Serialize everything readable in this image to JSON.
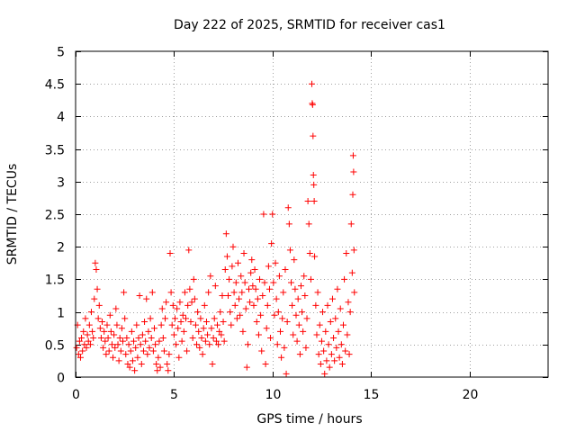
{
  "chart_data": {
    "type": "scatter",
    "title": "Day 222 of 2025, SRMTID for receiver cas1",
    "xlabel": "GPS time / hours",
    "ylabel": "SRMTID / TECUs",
    "xlim": [
      0,
      24
    ],
    "ylim": [
      0,
      5
    ],
    "x_ticks": [
      0,
      5,
      10,
      15,
      20
    ],
    "y_ticks": [
      0,
      0.5,
      1,
      1.5,
      2,
      2.5,
      3,
      3.5,
      4,
      4.5,
      5
    ],
    "x_tick_labels": [
      "0",
      "5",
      "10",
      "15",
      "20"
    ],
    "y_tick_labels": [
      "0",
      "0.5",
      "1",
      "1.5",
      "2",
      "2.5",
      "3",
      "3.5",
      "4",
      "4.5",
      "5"
    ],
    "grid": true,
    "marker": "+",
    "color": "#ff0000",
    "series": [
      {
        "name": "cas1",
        "points": [
          [
            0.05,
            0.45
          ],
          [
            0.1,
            0.8
          ],
          [
            0.15,
            0.35
          ],
          [
            0.2,
            0.55
          ],
          [
            0.25,
            0.3
          ],
          [
            0.3,
            0.6
          ],
          [
            0.35,
            0.4
          ],
          [
            0.4,
            0.7
          ],
          [
            0.45,
            0.5
          ],
          [
            0.5,
            0.9
          ],
          [
            0.55,
            0.45
          ],
          [
            0.6,
            0.65
          ],
          [
            0.65,
            0.55
          ],
          [
            0.7,
            0.8
          ],
          [
            0.75,
            0.5
          ],
          [
            0.8,
            1.0
          ],
          [
            0.85,
            0.7
          ],
          [
            0.9,
            0.6
          ],
          [
            0.95,
            1.2
          ],
          [
            1.0,
            1.75
          ],
          [
            1.05,
            1.65
          ],
          [
            1.1,
            1.35
          ],
          [
            1.15,
            0.9
          ],
          [
            1.2,
            1.1
          ],
          [
            1.25,
            0.75
          ],
          [
            1.3,
            0.6
          ],
          [
            1.35,
            0.85
          ],
          [
            1.4,
            0.45
          ],
          [
            1.45,
            0.7
          ],
          [
            1.5,
            0.55
          ],
          [
            1.55,
            0.35
          ],
          [
            1.6,
            0.8
          ],
          [
            1.65,
            0.6
          ],
          [
            1.7,
            0.4
          ],
          [
            1.75,
            0.95
          ],
          [
            1.8,
            0.7
          ],
          [
            1.85,
            0.5
          ],
          [
            1.9,
            0.3
          ],
          [
            1.95,
            0.65
          ],
          [
            2.0,
            0.45
          ],
          [
            2.05,
            1.05
          ],
          [
            2.1,
            0.8
          ],
          [
            2.15,
            0.5
          ],
          [
            2.2,
            0.25
          ],
          [
            2.25,
            0.6
          ],
          [
            2.3,
            0.4
          ],
          [
            2.35,
            0.75
          ],
          [
            2.4,
            0.55
          ],
          [
            2.45,
            1.3
          ],
          [
            2.5,
            0.9
          ],
          [
            2.55,
            0.35
          ],
          [
            2.6,
            0.6
          ],
          [
            2.65,
            0.2
          ],
          [
            2.7,
            0.5
          ],
          [
            2.75,
            0.15
          ],
          [
            2.8,
            0.4
          ],
          [
            2.85,
            0.7
          ],
          [
            2.9,
            0.25
          ],
          [
            2.95,
            0.55
          ],
          [
            3.0,
            0.1
          ],
          [
            3.05,
            0.45
          ],
          [
            3.1,
            0.8
          ],
          [
            3.15,
            0.3
          ],
          [
            3.2,
            0.6
          ],
          [
            3.25,
            1.25
          ],
          [
            3.3,
            0.5
          ],
          [
            3.35,
            0.2
          ],
          [
            3.4,
            0.65
          ],
          [
            3.45,
            0.4
          ],
          [
            3.5,
            0.85
          ],
          [
            3.55,
            0.55
          ],
          [
            3.6,
            1.2
          ],
          [
            3.65,
            0.35
          ],
          [
            3.7,
            0.7
          ],
          [
            3.75,
            0.45
          ],
          [
            3.8,
            0.9
          ],
          [
            3.85,
            0.6
          ],
          [
            3.9,
            1.3
          ],
          [
            3.95,
            0.4
          ],
          [
            4.0,
            0.75
          ],
          [
            4.05,
            0.5
          ],
          [
            4.1,
            0.2
          ],
          [
            4.15,
            0.1
          ],
          [
            4.2,
            0.3
          ],
          [
            4.25,
            0.55
          ],
          [
            4.3,
            0.15
          ],
          [
            4.35,
            0.8
          ],
          [
            4.4,
            1.05
          ],
          [
            4.45,
            0.6
          ],
          [
            4.5,
            0.4
          ],
          [
            4.55,
            0.9
          ],
          [
            4.6,
            1.15
          ],
          [
            4.65,
            0.2
          ],
          [
            4.7,
            0.1
          ],
          [
            4.75,
            0.35
          ],
          [
            4.8,
            1.9
          ],
          [
            4.85,
            1.3
          ],
          [
            4.9,
            0.8
          ],
          [
            4.95,
            1.1
          ],
          [
            5.0,
            0.65
          ],
          [
            5.05,
            0.9
          ],
          [
            5.1,
            0.5
          ],
          [
            5.15,
            1.05
          ],
          [
            5.2,
            0.75
          ],
          [
            5.25,
            0.3
          ],
          [
            5.3,
            1.15
          ],
          [
            5.35,
            0.85
          ],
          [
            5.4,
            0.55
          ],
          [
            5.45,
            0.95
          ],
          [
            5.5,
            0.7
          ],
          [
            5.55,
            1.3
          ],
          [
            5.6,
            0.9
          ],
          [
            5.65,
            0.4
          ],
          [
            5.7,
            1.1
          ],
          [
            5.75,
            1.95
          ],
          [
            5.8,
            1.35
          ],
          [
            5.85,
            0.85
          ],
          [
            5.9,
            1.15
          ],
          [
            5.95,
            0.6
          ],
          [
            6.0,
            1.5
          ],
          [
            6.05,
            1.2
          ],
          [
            6.1,
            0.8
          ],
          [
            6.15,
            0.5
          ],
          [
            6.2,
            1.0
          ],
          [
            6.25,
            0.7
          ],
          [
            6.3,
            0.45
          ],
          [
            6.35,
            0.9
          ],
          [
            6.4,
            0.6
          ],
          [
            6.45,
            0.35
          ],
          [
            6.5,
            0.75
          ],
          [
            6.55,
            1.1
          ],
          [
            6.6,
            0.55
          ],
          [
            6.65,
            0.85
          ],
          [
            6.7,
            0.65
          ],
          [
            6.75,
            1.3
          ],
          [
            6.8,
            0.5
          ],
          [
            6.85,
            1.55
          ],
          [
            6.9,
            0.75
          ],
          [
            6.95,
            0.2
          ],
          [
            7.0,
            0.6
          ],
          [
            7.05,
            0.9
          ],
          [
            7.1,
            1.4
          ],
          [
            7.15,
            0.55
          ],
          [
            7.2,
            0.8
          ],
          [
            7.25,
            0.5
          ],
          [
            7.3,
            0.7
          ],
          [
            7.35,
            1.0
          ],
          [
            7.4,
            0.65
          ],
          [
            7.45,
            1.25
          ],
          [
            7.5,
            0.85
          ],
          [
            7.55,
            0.55
          ],
          [
            7.6,
            1.65
          ],
          [
            7.65,
            2.2
          ],
          [
            7.7,
            1.85
          ],
          [
            7.75,
            1.25
          ],
          [
            7.8,
            1.5
          ],
          [
            7.85,
            1.0
          ],
          [
            7.9,
            0.8
          ],
          [
            7.95,
            1.7
          ],
          [
            8.0,
            2.0
          ],
          [
            8.05,
            1.3
          ],
          [
            8.1,
            1.1
          ],
          [
            8.15,
            1.45
          ],
          [
            8.2,
            0.9
          ],
          [
            8.25,
            1.75
          ],
          [
            8.3,
            1.2
          ],
          [
            8.35,
            0.95
          ],
          [
            8.4,
            1.55
          ],
          [
            8.45,
            1.3
          ],
          [
            8.5,
            0.7
          ],
          [
            8.55,
            1.9
          ],
          [
            8.6,
            1.45
          ],
          [
            8.65,
            1.05
          ],
          [
            8.7,
            0.15
          ],
          [
            8.75,
            0.5
          ],
          [
            8.8,
            1.35
          ],
          [
            8.85,
            1.15
          ],
          [
            8.9,
            1.6
          ],
          [
            8.95,
            1.8
          ],
          [
            9.0,
            1.4
          ],
          [
            9.05,
            1.1
          ],
          [
            9.1,
            1.65
          ],
          [
            9.15,
            1.35
          ],
          [
            9.2,
            0.85
          ],
          [
            9.25,
            1.2
          ],
          [
            9.3,
            0.65
          ],
          [
            9.35,
            1.5
          ],
          [
            9.4,
            0.95
          ],
          [
            9.45,
            0.4
          ],
          [
            9.5,
            1.25
          ],
          [
            9.55,
            2.5
          ],
          [
            9.6,
            1.45
          ],
          [
            9.65,
            0.2
          ],
          [
            9.7,
            0.75
          ],
          [
            9.75,
            1.1
          ],
          [
            9.8,
            1.7
          ],
          [
            9.85,
            1.35
          ],
          [
            9.9,
            0.6
          ],
          [
            9.95,
            2.05
          ],
          [
            10.0,
            2.5
          ],
          [
            10.05,
            1.45
          ],
          [
            10.1,
            0.95
          ],
          [
            10.15,
            1.75
          ],
          [
            10.2,
            1.2
          ],
          [
            10.25,
            0.5
          ],
          [
            10.3,
            1.0
          ],
          [
            10.35,
            1.55
          ],
          [
            10.4,
            0.7
          ],
          [
            10.45,
            0.3
          ],
          [
            10.5,
            0.9
          ],
          [
            10.55,
            1.3
          ],
          [
            10.6,
            0.45
          ],
          [
            10.65,
            1.65
          ],
          [
            10.7,
            0.05
          ],
          [
            10.75,
            0.85
          ],
          [
            10.8,
            2.6
          ],
          [
            10.85,
            2.35
          ],
          [
            10.9,
            1.95
          ],
          [
            10.95,
            1.45
          ],
          [
            11.0,
            1.1
          ],
          [
            11.05,
            0.65
          ],
          [
            11.1,
            1.8
          ],
          [
            11.15,
            1.35
          ],
          [
            11.2,
            0.95
          ],
          [
            11.25,
            0.55
          ],
          [
            11.3,
            1.2
          ],
          [
            11.35,
            0.8
          ],
          [
            11.4,
            0.35
          ],
          [
            11.45,
            1.4
          ],
          [
            11.5,
            1.0
          ],
          [
            11.55,
            0.7
          ],
          [
            11.6,
            1.55
          ],
          [
            11.65,
            1.25
          ],
          [
            11.7,
            0.45
          ],
          [
            11.75,
            0.9
          ],
          [
            11.8,
            2.7
          ],
          [
            11.85,
            2.35
          ],
          [
            11.9,
            1.9
          ],
          [
            11.95,
            1.5
          ],
          [
            12.0,
            4.5
          ],
          [
            12.02,
            4.2
          ],
          [
            12.04,
            4.18
          ],
          [
            12.06,
            3.7
          ],
          [
            12.08,
            3.1
          ],
          [
            12.1,
            2.95
          ],
          [
            12.12,
            2.7
          ],
          [
            12.14,
            1.85
          ],
          [
            12.2,
            1.1
          ],
          [
            12.25,
            0.65
          ],
          [
            12.3,
            1.3
          ],
          [
            12.35,
            0.35
          ],
          [
            12.4,
            0.8
          ],
          [
            12.45,
            0.2
          ],
          [
            12.5,
            0.55
          ],
          [
            12.55,
            1.0
          ],
          [
            12.6,
            0.4
          ],
          [
            12.65,
            0.05
          ],
          [
            12.7,
            0.7
          ],
          [
            12.75,
            0.25
          ],
          [
            12.8,
            1.1
          ],
          [
            12.85,
            0.5
          ],
          [
            12.9,
            0.15
          ],
          [
            12.95,
            0.85
          ],
          [
            13.0,
            0.35
          ],
          [
            13.05,
            1.2
          ],
          [
            13.1,
            0.6
          ],
          [
            13.15,
            0.25
          ],
          [
            13.2,
            0.9
          ],
          [
            13.25,
            0.45
          ],
          [
            13.3,
            1.35
          ],
          [
            13.35,
            0.7
          ],
          [
            13.4,
            0.3
          ],
          [
            13.45,
            1.05
          ],
          [
            13.5,
            0.5
          ],
          [
            13.55,
            0.2
          ],
          [
            13.6,
            0.8
          ],
          [
            13.65,
            1.5
          ],
          [
            13.7,
            0.4
          ],
          [
            13.75,
            1.9
          ],
          [
            13.8,
            0.65
          ],
          [
            13.85,
            1.15
          ],
          [
            13.9,
            0.35
          ],
          [
            13.95,
            1.0
          ],
          [
            14.0,
            2.35
          ],
          [
            14.05,
            1.6
          ],
          [
            14.08,
            2.8
          ],
          [
            14.1,
            3.4
          ],
          [
            14.12,
            3.15
          ],
          [
            14.14,
            1.95
          ],
          [
            14.16,
            1.3
          ]
        ]
      }
    ]
  }
}
